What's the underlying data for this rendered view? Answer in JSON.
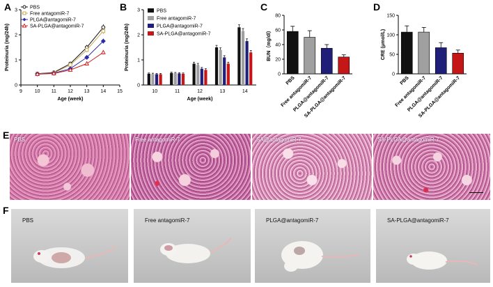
{
  "panels": {
    "A": "A",
    "B": "B",
    "C": "C",
    "D": "D",
    "E": "E",
    "F": "F"
  },
  "groups": [
    "PBS",
    "Free antagomiR-7",
    "PLGA@antagomiR-7",
    "SA-PLGA@antagomiR-7"
  ],
  "colors": {
    "pbs": "#111111",
    "free": "#c8a85a",
    "plga": "#2b2ba8",
    "sa": "#cc2020",
    "free_bar": "#a0a0a0",
    "plga_bar": "#1f1f7a",
    "sa_bar": "#c41818"
  },
  "histology_labels": [
    "PBS",
    "Free antagomiR-7",
    "SA@antagomiR-7",
    "SA-PLGA@antagomiR-7"
  ],
  "photo_labels": [
    "PBS",
    "Free antagomiR-7",
    "PLGA@antagomiR-7",
    "SA-PLGA@antagomiR-7"
  ],
  "chart_data": [
    {
      "panel": "A",
      "type": "line",
      "xlabel": "Age (week)",
      "ylabel": "Proteinuria (mg/24h)",
      "xlim": [
        9,
        15
      ],
      "ylim": [
        0,
        3
      ],
      "xticks": [
        "9",
        "10",
        "11",
        "12",
        "13",
        "14",
        "15"
      ],
      "yticks": [
        "0",
        "1",
        "2",
        "3"
      ],
      "legend": "top-left",
      "x": [
        10,
        11,
        12,
        13,
        14
      ],
      "series": [
        {
          "name": "PBS",
          "values": [
            0.45,
            0.5,
            0.85,
            1.5,
            2.3
          ],
          "errors": [
            0.04,
            0.04,
            0.08,
            0.1,
            0.12
          ],
          "marker": "circle-open",
          "color_key": "pbs"
        },
        {
          "name": "Free antagomiR-7",
          "values": [
            0.45,
            0.48,
            0.8,
            1.4,
            2.15
          ],
          "errors": [
            0.04,
            0.04,
            0.07,
            0.1,
            0.12
          ],
          "marker": "square-open",
          "color_key": "free"
        },
        {
          "name": "PLGA@antagomiR-7",
          "values": [
            0.44,
            0.47,
            0.65,
            1.1,
            1.75
          ],
          "errors": [
            0.04,
            0.04,
            0.06,
            0.08,
            0.1
          ],
          "marker": "diamond",
          "color_key": "plga"
        },
        {
          "name": "SA-PLGA@antagomiR-7",
          "values": [
            0.43,
            0.46,
            0.6,
            0.85,
            1.3
          ],
          "errors": [
            0.04,
            0.04,
            0.06,
            0.07,
            0.08
          ],
          "marker": "triangle-open",
          "color_key": "sa"
        }
      ]
    },
    {
      "panel": "B",
      "type": "bar",
      "xlabel": "Age (week)",
      "ylabel": "Proteinuria (mg/24h)",
      "ylim": [
        0,
        3
      ],
      "yticks": [
        "0",
        "1",
        "2",
        "3"
      ],
      "legend": "top-left",
      "categories": [
        "10",
        "11",
        "12",
        "13",
        "14"
      ],
      "series": [
        {
          "name": "PBS",
          "values": [
            0.45,
            0.48,
            0.85,
            1.5,
            2.3
          ],
          "errors": [
            0.03,
            0.03,
            0.06,
            0.08,
            0.1
          ],
          "color_key": "pbs"
        },
        {
          "name": "Free antagomiR-7",
          "values": [
            0.44,
            0.47,
            0.8,
            1.4,
            2.15
          ],
          "errors": [
            0.03,
            0.03,
            0.06,
            0.08,
            0.1
          ],
          "color_key": "free_bar"
        },
        {
          "name": "PLGA@antagomiR-7",
          "values": [
            0.43,
            0.46,
            0.65,
            1.1,
            1.75
          ],
          "errors": [
            0.03,
            0.03,
            0.05,
            0.07,
            0.09
          ],
          "color_key": "plga_bar"
        },
        {
          "name": "SA-PLGA@antagomiR-7",
          "values": [
            0.43,
            0.45,
            0.6,
            0.85,
            1.3
          ],
          "errors": [
            0.03,
            0.03,
            0.05,
            0.06,
            0.08
          ],
          "color_key": "sa_bar"
        }
      ]
    },
    {
      "panel": "C",
      "type": "bar",
      "ylabel": "BUN（mg/dl）",
      "ylim": [
        0,
        80
      ],
      "yticks": [
        "0",
        "20",
        "40",
        "60",
        "80"
      ],
      "categories": [
        "PBS",
        "Free antagomiR-7",
        "PLGA@antagomiR-7",
        "SA-PLGA@antagomiR-7"
      ],
      "values": [
        58,
        50,
        35,
        23
      ],
      "errors": [
        7,
        9,
        5,
        3
      ],
      "color_keys": [
        "pbs",
        "free_bar",
        "plga_bar",
        "sa_bar"
      ]
    },
    {
      "panel": "D",
      "type": "bar",
      "ylabel": "CRE (μmol/L)",
      "ylim": [
        0,
        150
      ],
      "yticks": [
        "0",
        "50",
        "100",
        "150"
      ],
      "categories": [
        "PBS",
        "Free antagomiR-7",
        "PLGA@antagomiR-7",
        "SA-PLGA@antagomiR-7"
      ],
      "values": [
        107,
        107,
        67,
        53
      ],
      "errors": [
        16,
        12,
        13,
        8
      ],
      "color_keys": [
        "pbs",
        "free_bar",
        "plga_bar",
        "sa_bar"
      ]
    }
  ]
}
